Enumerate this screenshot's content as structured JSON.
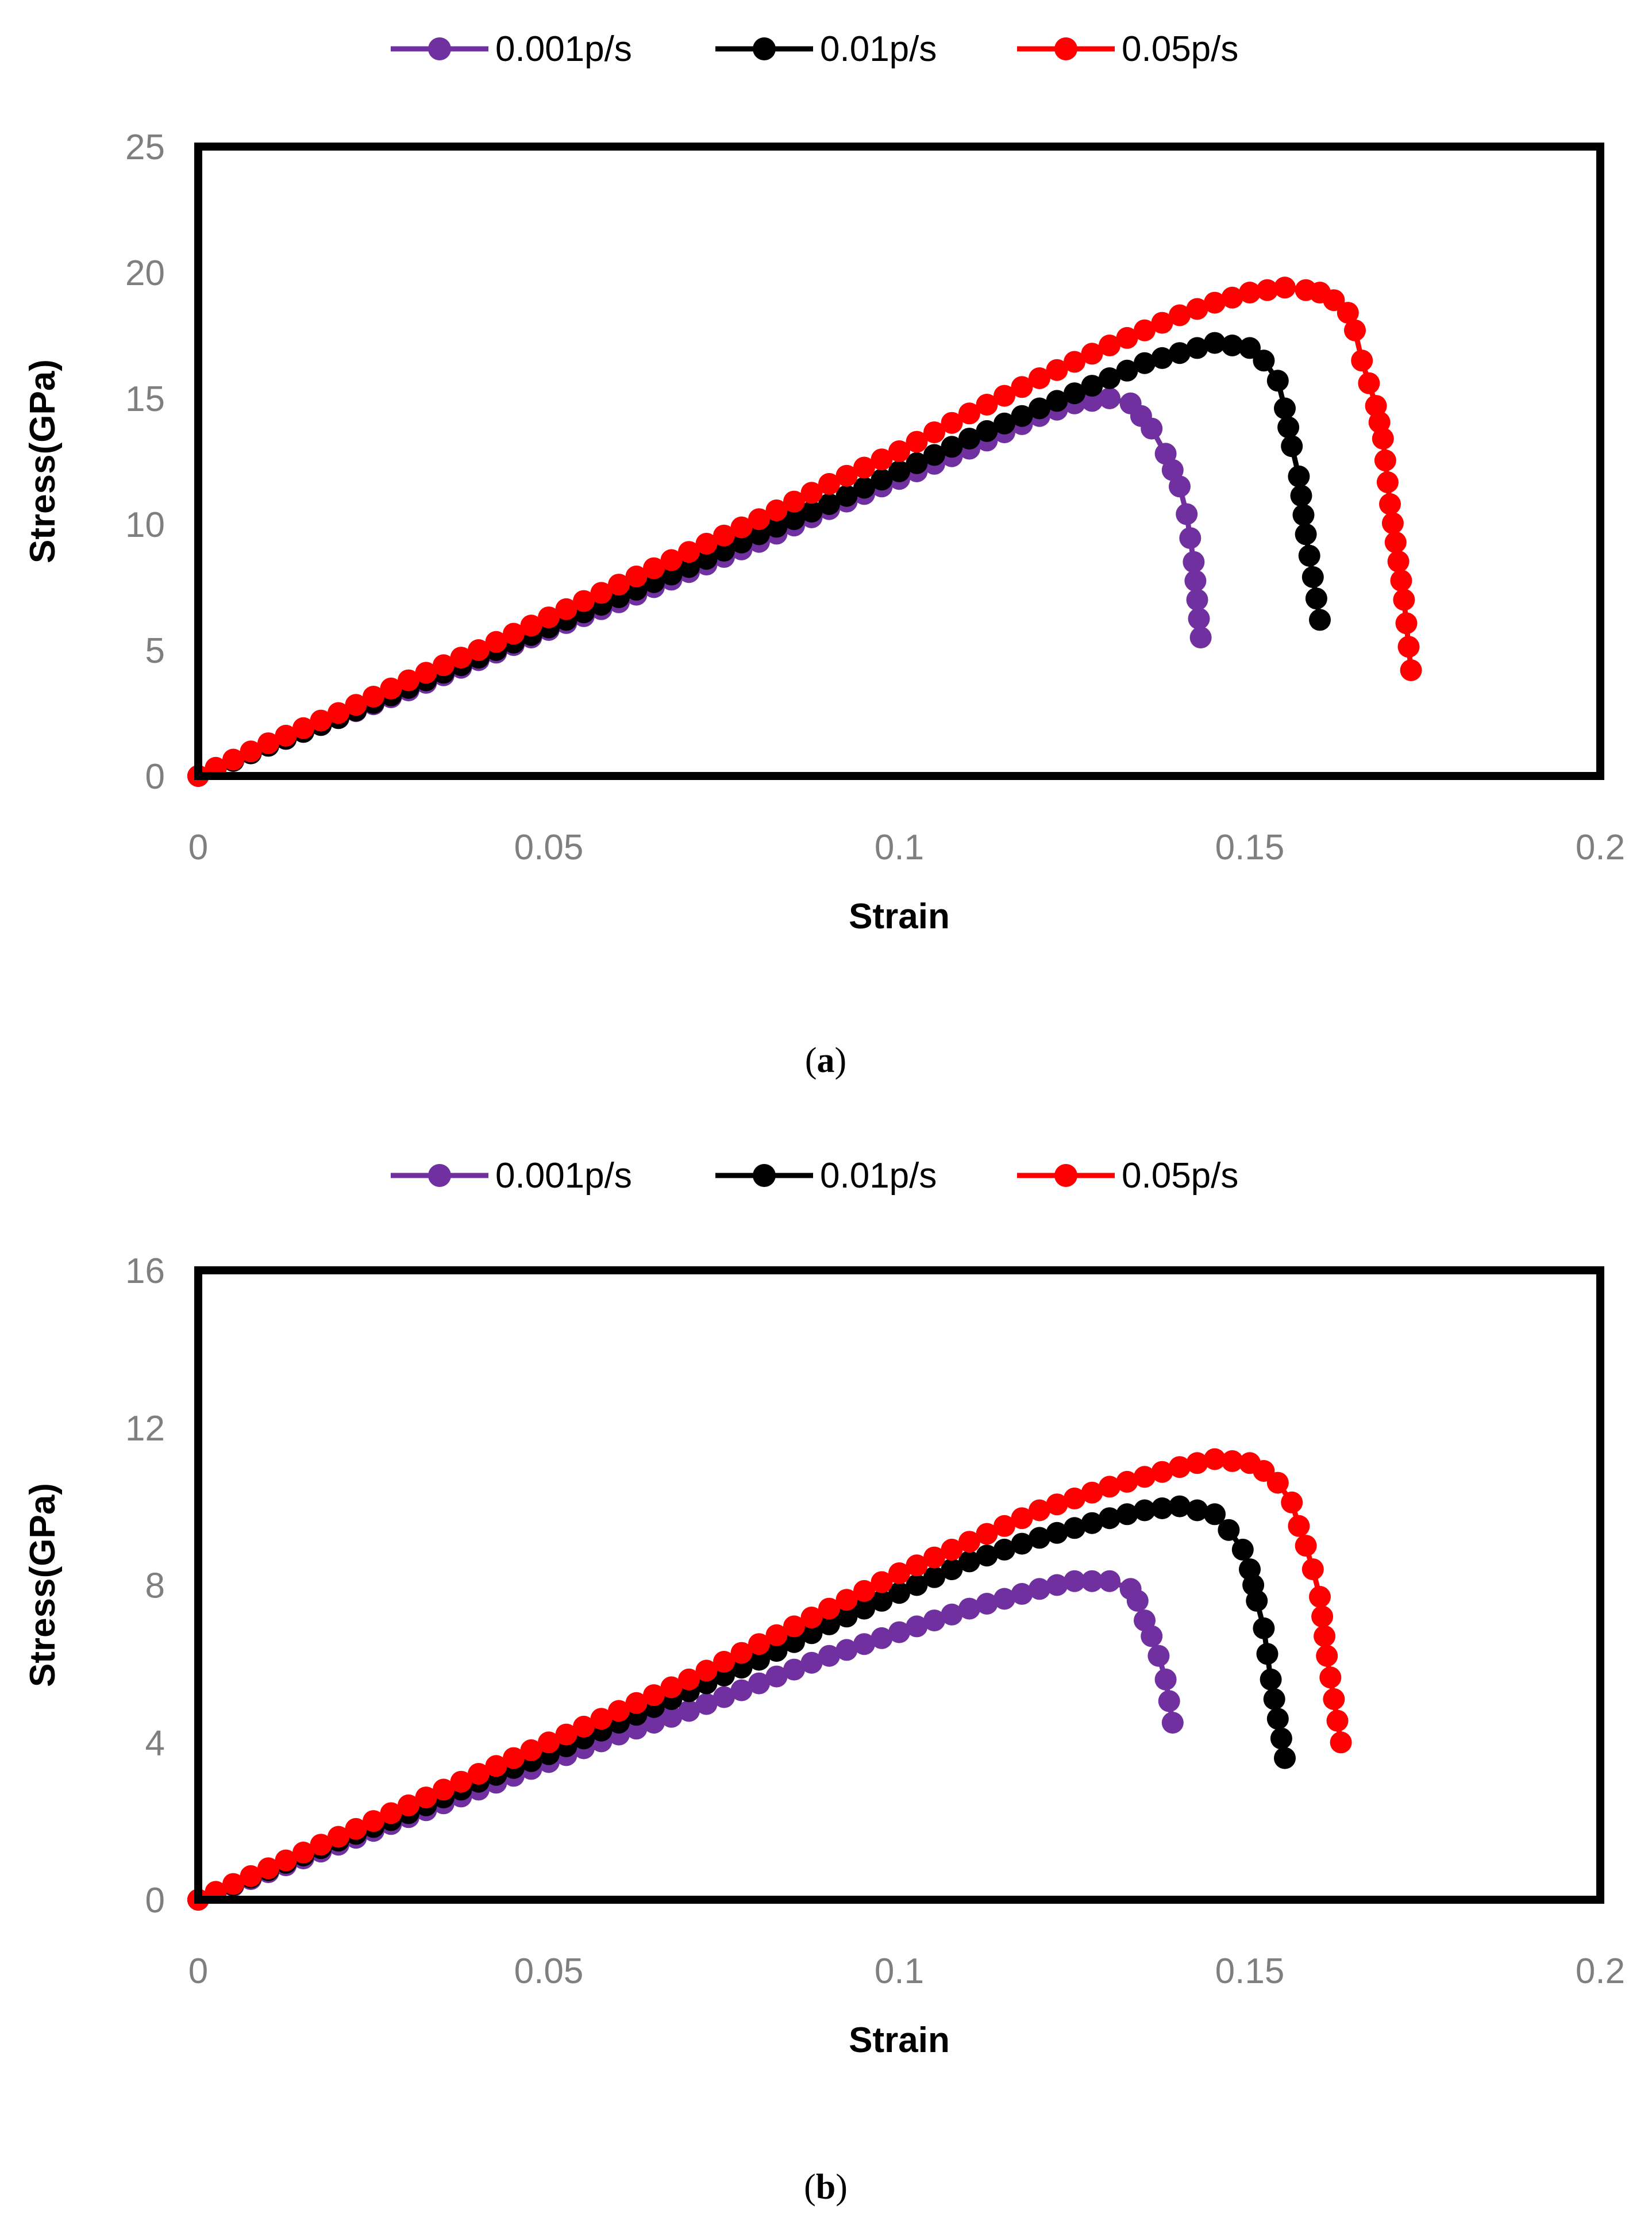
{
  "chart_data": [
    {
      "type": "line",
      "caption": "a",
      "xlabel": "Strain",
      "ylabel": "Stress(GPa)",
      "xlim": [
        0,
        0.2
      ],
      "ylim": [
        0,
        25
      ],
      "xticks": [
        0,
        0.05,
        0.1,
        0.15,
        0.2
      ],
      "xtick_labels": [
        "0",
        "0.05",
        "0.1",
        "0.15",
        "0.2"
      ],
      "yticks": [
        0,
        5,
        10,
        15,
        20,
        25
      ],
      "ytick_labels": [
        "0",
        "5",
        "10",
        "15",
        "20",
        "25"
      ],
      "legend_position": "top",
      "series": [
        {
          "name": "0.001p/s",
          "color": "#7030a0",
          "points": [
            [
              0,
              0
            ],
            [
              0.01,
              1.2
            ],
            [
              0.02,
              2.3
            ],
            [
              0.03,
              3.4
            ],
            [
              0.04,
              4.6
            ],
            [
              0.05,
              5.8
            ],
            [
              0.06,
              6.9
            ],
            [
              0.07,
              8.1
            ],
            [
              0.08,
              9.3
            ],
            [
              0.09,
              10.6
            ],
            [
              0.1,
              11.8
            ],
            [
              0.11,
              13
            ],
            [
              0.12,
              14.3
            ],
            [
              0.125,
              14.8
            ],
            [
              0.13,
              15
            ],
            [
              0.133,
              14.8
            ],
            [
              0.136,
              13.8
            ],
            [
              0.138,
              12.8
            ],
            [
              0.14,
              11.5
            ],
            [
              0.141,
              10.4
            ],
            [
              0.142,
              8.5
            ],
            [
              0.143,
              5.5
            ]
          ]
        },
        {
          "name": "0.01p/s",
          "color": "#000000",
          "points": [
            [
              0,
              0
            ],
            [
              0.01,
              1.2
            ],
            [
              0.02,
              2.3
            ],
            [
              0.03,
              3.5
            ],
            [
              0.04,
              4.7
            ],
            [
              0.05,
              5.9
            ],
            [
              0.06,
              7.1
            ],
            [
              0.07,
              8.3
            ],
            [
              0.08,
              9.6
            ],
            [
              0.09,
              10.8
            ],
            [
              0.1,
              12.1
            ],
            [
              0.11,
              13.4
            ],
            [
              0.12,
              14.6
            ],
            [
              0.13,
              15.8
            ],
            [
              0.135,
              16.4
            ],
            [
              0.14,
              16.8
            ],
            [
              0.145,
              17.2
            ],
            [
              0.15,
              17
            ],
            [
              0.152,
              16.5
            ],
            [
              0.154,
              15.7
            ],
            [
              0.155,
              14.6
            ],
            [
              0.156,
              13.1
            ],
            [
              0.157,
              11.9
            ],
            [
              0.158,
              9.6
            ],
            [
              0.16,
              6.2
            ]
          ]
        },
        {
          "name": "0.05p/s",
          "color": "#ff0000",
          "points": [
            [
              0,
              0
            ],
            [
              0.01,
              1.3
            ],
            [
              0.02,
              2.5
            ],
            [
              0.03,
              3.8
            ],
            [
              0.04,
              5
            ],
            [
              0.05,
              6.3
            ],
            [
              0.06,
              7.6
            ],
            [
              0.07,
              8.9
            ],
            [
              0.08,
              10.2
            ],
            [
              0.09,
              11.6
            ],
            [
              0.1,
              12.9
            ],
            [
              0.11,
              14.4
            ],
            [
              0.12,
              15.8
            ],
            [
              0.13,
              17.1
            ],
            [
              0.14,
              18.3
            ],
            [
              0.145,
              18.8
            ],
            [
              0.15,
              19.2
            ],
            [
              0.155,
              19.4
            ],
            [
              0.158,
              19.3
            ],
            [
              0.16,
              19.2
            ],
            [
              0.162,
              18.9
            ],
            [
              0.164,
              18.4
            ],
            [
              0.165,
              17.7
            ],
            [
              0.166,
              16.5
            ],
            [
              0.168,
              14.7
            ],
            [
              0.169,
              13.4
            ],
            [
              0.17,
              10.8
            ],
            [
              0.172,
              7
            ],
            [
              0.173,
              4.2
            ]
          ]
        }
      ]
    },
    {
      "type": "line",
      "caption": "b",
      "xlabel": "Strain",
      "ylabel": "Stress(GPa)",
      "xlim": [
        0,
        0.2
      ],
      "ylim": [
        0,
        16
      ],
      "xticks": [
        0,
        0.05,
        0.1,
        0.15,
        0.2
      ],
      "xtick_labels": [
        "0",
        "0.05",
        "0.1",
        "0.15",
        "0.2"
      ],
      "yticks": [
        0,
        4,
        8,
        12,
        16
      ],
      "ytick_labels": [
        "0",
        "4",
        "8",
        "12",
        "16"
      ],
      "legend_position": "top",
      "series": [
        {
          "name": "0.001p/s",
          "color": "#7030a0",
          "points": [
            [
              0,
              0
            ],
            [
              0.01,
              0.7
            ],
            [
              0.02,
              1.4
            ],
            [
              0.03,
              2.1
            ],
            [
              0.04,
              2.8
            ],
            [
              0.05,
              3.5
            ],
            [
              0.06,
              4.2
            ],
            [
              0.07,
              4.8
            ],
            [
              0.08,
              5.5
            ],
            [
              0.09,
              6.2
            ],
            [
              0.1,
              6.8
            ],
            [
              0.11,
              7.4
            ],
            [
              0.12,
              7.9
            ],
            [
              0.125,
              8.1
            ],
            [
              0.13,
              8.1
            ],
            [
              0.133,
              7.9
            ],
            [
              0.134,
              7.6
            ],
            [
              0.135,
              7.1
            ],
            [
              0.136,
              6.7
            ],
            [
              0.137,
              6.2
            ],
            [
              0.138,
              5.6
            ],
            [
              0.139,
              4.5
            ]
          ]
        },
        {
          "name": "0.01p/s",
          "color": "#000000",
          "points": [
            [
              0,
              0
            ],
            [
              0.01,
              0.75
            ],
            [
              0.02,
              1.5
            ],
            [
              0.03,
              2.2
            ],
            [
              0.04,
              3
            ],
            [
              0.05,
              3.7
            ],
            [
              0.06,
              4.5
            ],
            [
              0.07,
              5.3
            ],
            [
              0.08,
              6.1
            ],
            [
              0.09,
              7
            ],
            [
              0.1,
              7.8
            ],
            [
              0.11,
              8.6
            ],
            [
              0.12,
              9.2
            ],
            [
              0.13,
              9.7
            ],
            [
              0.135,
              9.9
            ],
            [
              0.14,
              10
            ],
            [
              0.145,
              9.8
            ],
            [
              0.147,
              9.4
            ],
            [
              0.149,
              8.9
            ],
            [
              0.15,
              8.4
            ],
            [
              0.151,
              7.6
            ],
            [
              0.152,
              6.9
            ],
            [
              0.153,
              5.6
            ],
            [
              0.155,
              3.6
            ]
          ]
        },
        {
          "name": "0.05p/s",
          "color": "#ff0000",
          "points": [
            [
              0,
              0
            ],
            [
              0.01,
              0.8
            ],
            [
              0.02,
              1.6
            ],
            [
              0.03,
              2.4
            ],
            [
              0.04,
              3.2
            ],
            [
              0.05,
              4
            ],
            [
              0.06,
              4.8
            ],
            [
              0.07,
              5.6
            ],
            [
              0.08,
              6.5
            ],
            [
              0.09,
              7.4
            ],
            [
              0.1,
              8.3
            ],
            [
              0.11,
              9.1
            ],
            [
              0.12,
              9.9
            ],
            [
              0.13,
              10.5
            ],
            [
              0.14,
              11
            ],
            [
              0.145,
              11.2
            ],
            [
              0.15,
              11.1
            ],
            [
              0.152,
              10.9
            ],
            [
              0.154,
              10.6
            ],
            [
              0.156,
              10.1
            ],
            [
              0.157,
              9.5
            ],
            [
              0.158,
              9
            ],
            [
              0.159,
              8.4
            ],
            [
              0.16,
              7.7
            ],
            [
              0.161,
              6.2
            ],
            [
              0.163,
              4
            ]
          ]
        }
      ]
    }
  ]
}
